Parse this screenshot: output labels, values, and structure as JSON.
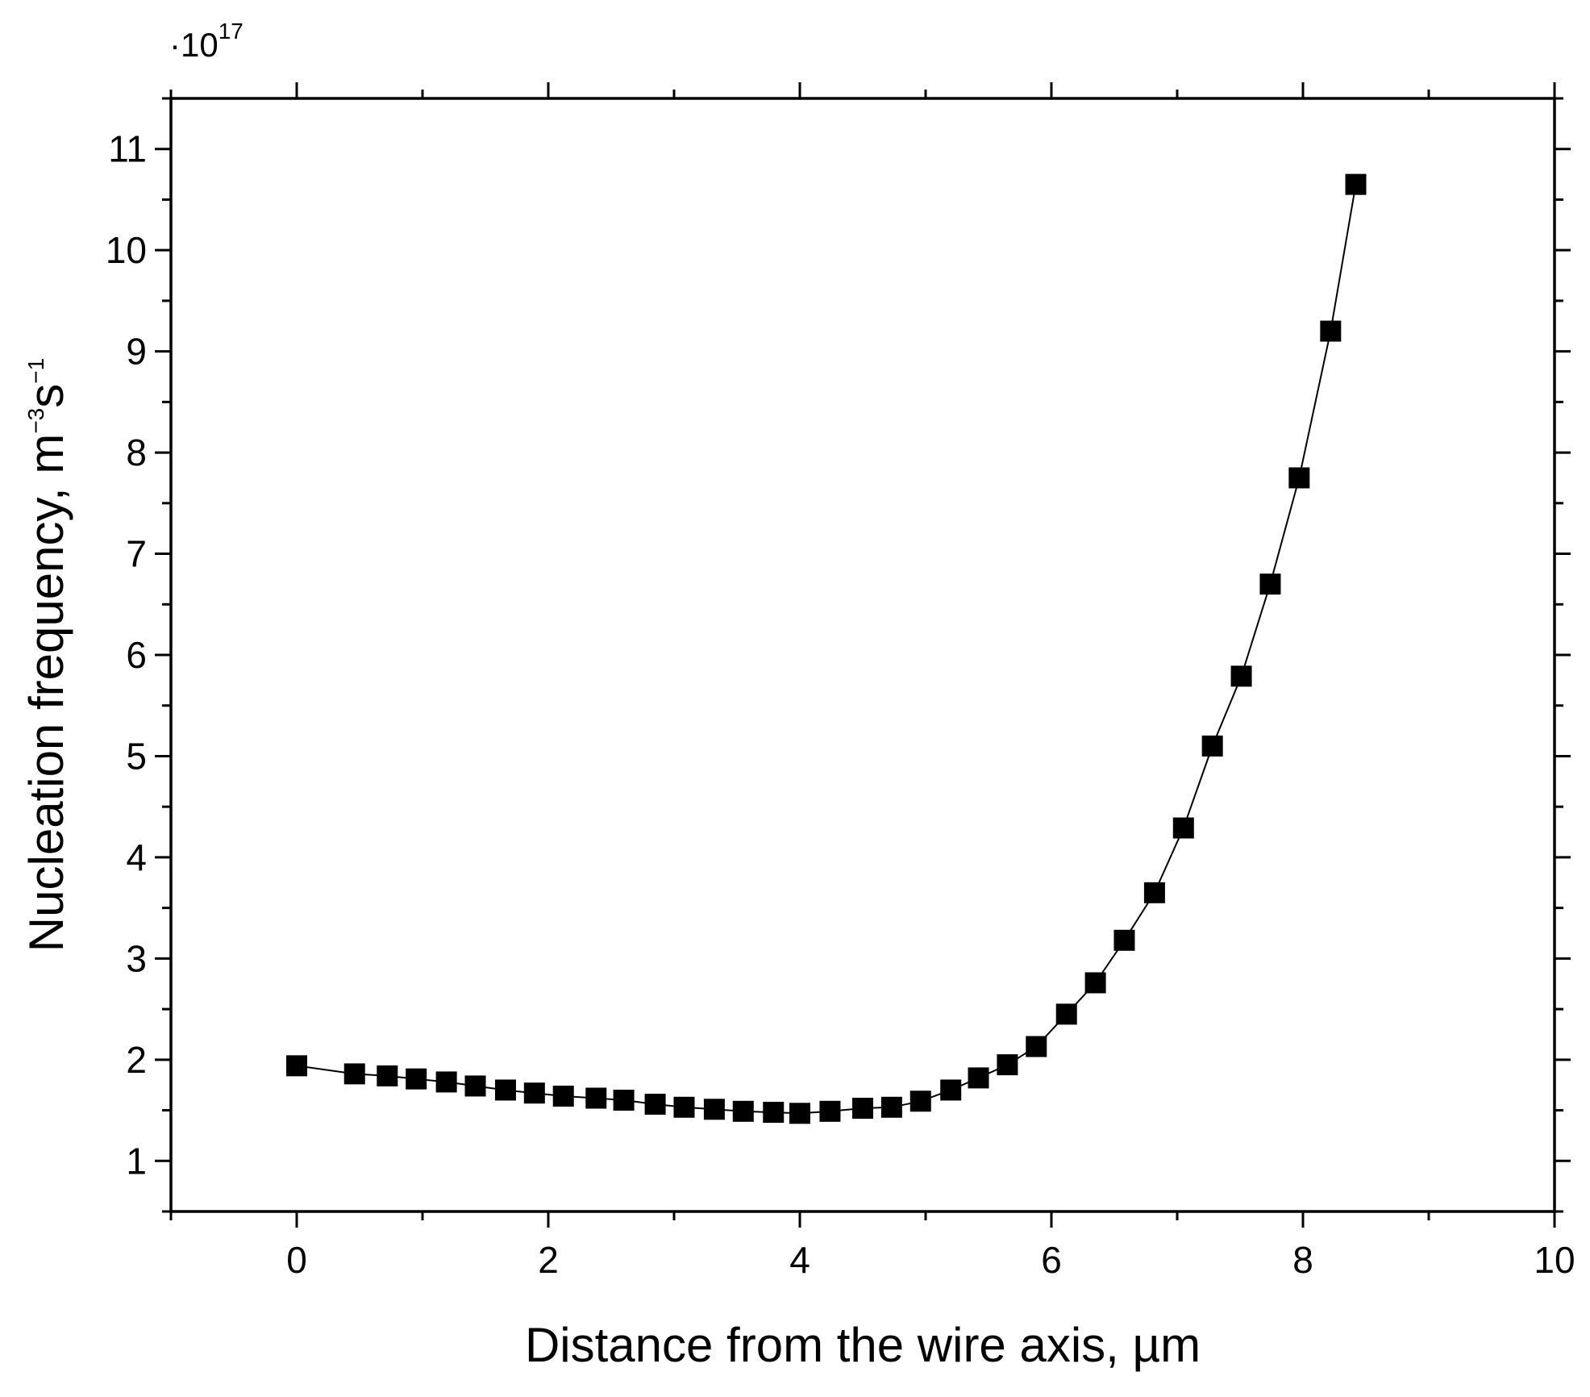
{
  "chart_data": {
    "type": "line",
    "title": "",
    "xlabel": "Distance from the wire axis, µm",
    "ylabel": {
      "base": "Nucleation frequency, m",
      "exp1": "−3",
      "mid": "s",
      "exp2": "−1"
    },
    "y_scale": {
      "prefix": "·10",
      "exponent": "17"
    },
    "xlim": [
      -1,
      10
    ],
    "ylim": [
      0.5,
      11.5
    ],
    "x_ticks": [
      0,
      2,
      4,
      6,
      8,
      10
    ],
    "y_ticks": [
      1,
      2,
      3,
      4,
      5,
      6,
      7,
      8,
      9,
      10,
      11
    ],
    "grid": false,
    "marker": "square",
    "series_color": "#000000",
    "series": [
      {
        "x": [
          0,
          0.46,
          0.72,
          0.95,
          1.19,
          1.42,
          1.66,
          1.89,
          2.12,
          2.38,
          2.6,
          2.85,
          3.08,
          3.32,
          3.55,
          3.79,
          4.0,
          4.24,
          4.5,
          4.73,
          4.96,
          5.2,
          5.42,
          5.65,
          5.88,
          6.12,
          6.35,
          6.58,
          6.82,
          7.05,
          7.28,
          7.51,
          7.74,
          7.97,
          8.22,
          8.42
        ],
        "y": [
          1.94,
          1.86,
          1.84,
          1.81,
          1.78,
          1.74,
          1.7,
          1.67,
          1.64,
          1.62,
          1.6,
          1.56,
          1.53,
          1.51,
          1.49,
          1.48,
          1.47,
          1.49,
          1.52,
          1.53,
          1.59,
          1.7,
          1.82,
          1.95,
          2.13,
          2.45,
          2.76,
          3.18,
          3.65,
          4.29,
          5.1,
          5.79,
          6.7,
          7.75,
          9.2,
          10.65
        ]
      }
    ]
  }
}
